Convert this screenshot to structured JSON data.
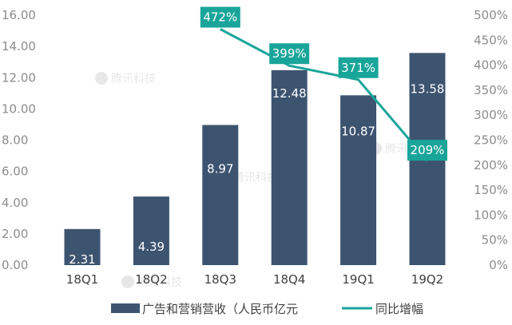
{
  "chart_data": {
    "type": "bar+line",
    "categories": [
      "18Q1",
      "18Q2",
      "18Q3",
      "18Q4",
      "19Q1",
      "19Q2"
    ],
    "series": [
      {
        "name": "广告和营销营收（人民币亿元",
        "type": "bar",
        "axis": "left",
        "values": [
          2.31,
          4.39,
          8.97,
          12.48,
          10.87,
          13.58
        ],
        "labels": [
          "2.31",
          "4.39",
          "8.97",
          "12.48",
          "10.87",
          "13.58"
        ],
        "color": "#3d5470"
      },
      {
        "name": "同比增幅",
        "type": "line",
        "axis": "right",
        "values": [
          null,
          null,
          472,
          399,
          371,
          209
        ],
        "labels": [
          "",
          "",
          "472%",
          "399%",
          "371%",
          "209%"
        ],
        "color": "#1aa59a"
      }
    ],
    "y_left": {
      "ylim": [
        0,
        16
      ],
      "ticks": [
        "0.00",
        "2.00",
        "4.00",
        "6.00",
        "8.00",
        "10.00",
        "12.00",
        "14.00",
        "16.00"
      ]
    },
    "y_right": {
      "ylim": [
        0,
        500
      ],
      "ticks": [
        "0%",
        "50%",
        "100%",
        "150%",
        "200%",
        "250%",
        "300%",
        "350%",
        "400%",
        "450%",
        "500%"
      ]
    },
    "grid": false,
    "legend_position": "bottom",
    "watermark": "腾讯科技"
  }
}
